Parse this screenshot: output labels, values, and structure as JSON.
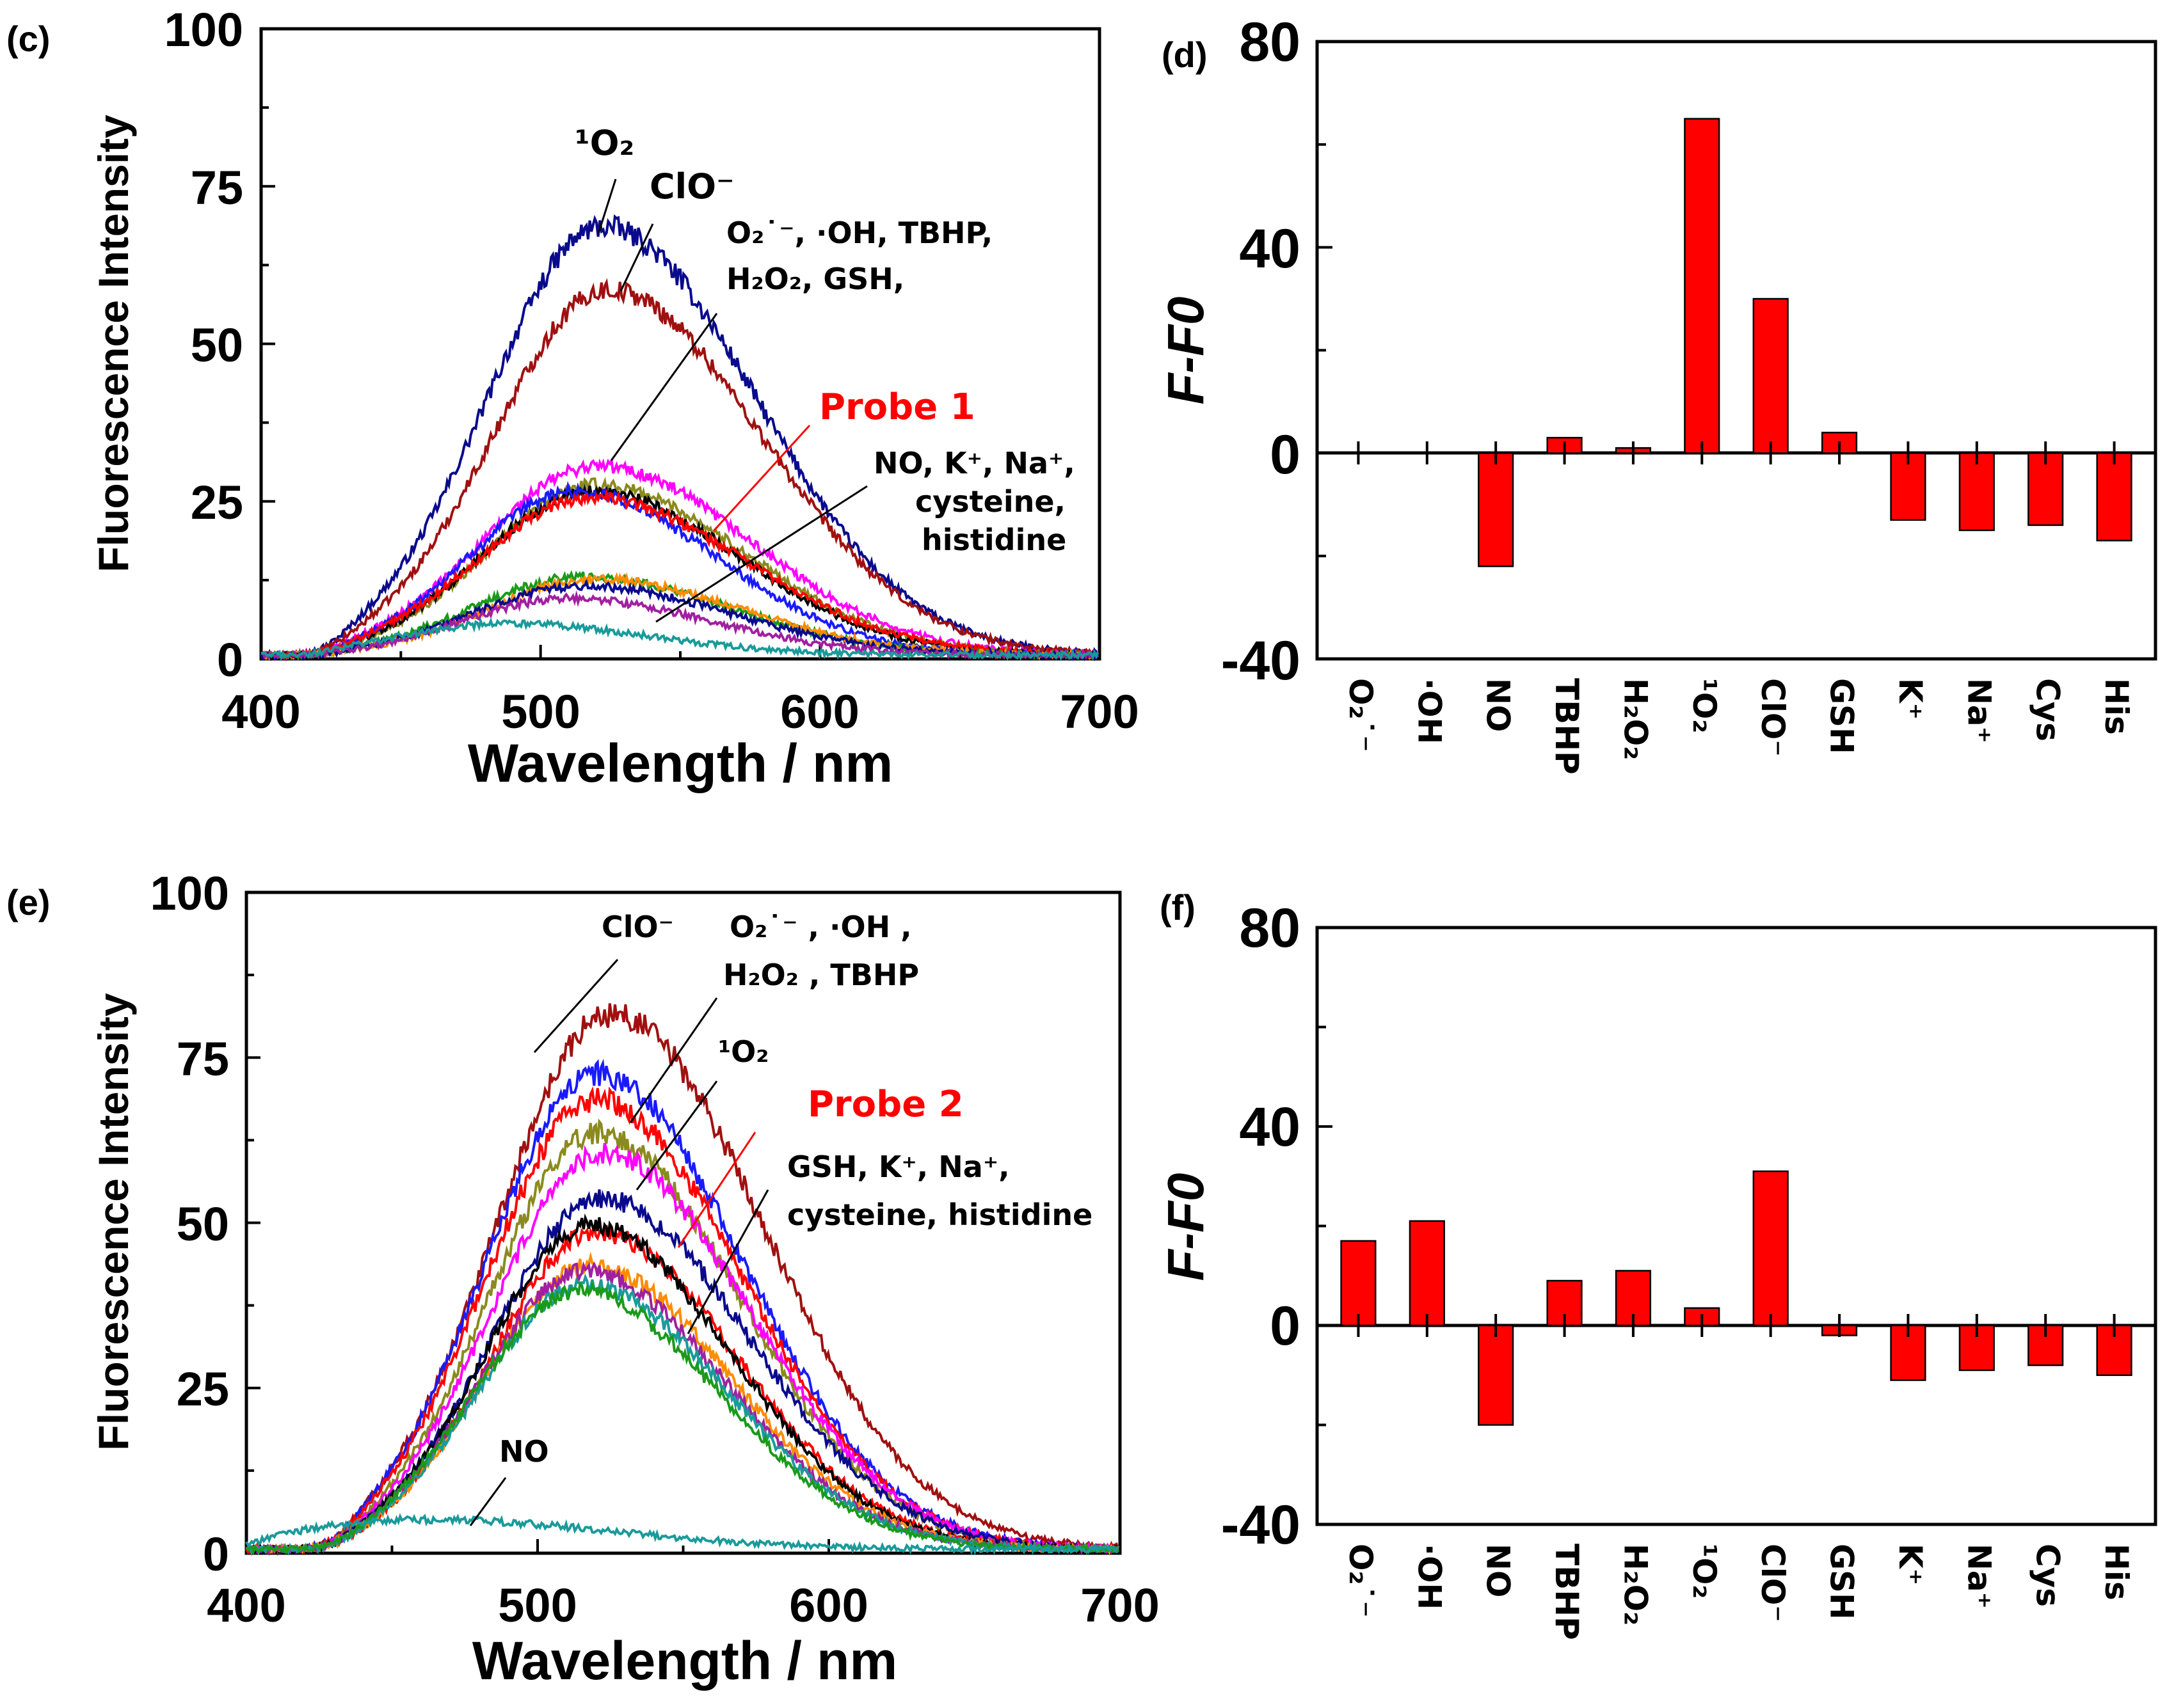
{
  "panels": {
    "c": {
      "label": "(c)",
      "type": "line",
      "xlabel": "Wavelength / nm",
      "ylabel": "Fluorescence Intensity",
      "xlim": [
        400,
        700
      ],
      "ylim": [
        0,
        100
      ],
      "xticks": [
        "400",
        "500",
        "600",
        "700"
      ],
      "yticks": [
        "0",
        "25",
        "50",
        "75",
        "100"
      ],
      "annotations": {
        "o2": "¹O₂",
        "clo": "ClO⁻",
        "grp1a": "O₂˙⁻, ·OH, TBHP,",
        "grp1b": "H₂O₂, GSH,",
        "probe": "Probe 1",
        "grp2a": "NO, K⁺, Na⁺,",
        "grp2b": "cysteine,",
        "grp2c": "histidine"
      }
    },
    "e": {
      "label": "(e)",
      "type": "line",
      "xlabel": "Wavelength / nm",
      "ylabel": "Fluorescence Intensity",
      "xlim": [
        400,
        700
      ],
      "ylim": [
        0,
        100
      ],
      "xticks": [
        "400",
        "500",
        "600",
        "700"
      ],
      "yticks": [
        "0",
        "25",
        "50",
        "75",
        "100"
      ],
      "annotations": {
        "clo": "ClO⁻",
        "grp1a": "O₂˙⁻ , ·OH ,",
        "grp1b": "H₂O₂ , TBHP",
        "o2": "¹O₂",
        "probe": "Probe 2",
        "grp2a": "GSH, K⁺, Na⁺,",
        "grp2b": "cysteine, histidine",
        "no": "NO"
      }
    },
    "d": {
      "label": "(d)",
      "ylabel": "F-F0",
      "yticks": [
        "-40",
        "0",
        "40",
        "80"
      ],
      "categories": [
        "O₂˙⁻",
        "·OH",
        "NO",
        "TBHP",
        "H₂O₂",
        "¹O₂",
        "ClO⁻",
        "GSH",
        "K⁺",
        "Na⁺",
        "Cys",
        "His"
      ]
    },
    "f": {
      "label": "(f)",
      "ylabel": "F-F0",
      "yticks": [
        "-40",
        "0",
        "40",
        "80"
      ],
      "categories": [
        "O₂˙⁻",
        "·OH",
        "NO",
        "TBHP",
        "H₂O₂",
        "¹O₂",
        "ClO⁻",
        "GSH",
        "K⁺",
        "Na⁺",
        "Cys",
        "His"
      ]
    }
  },
  "colors": {
    "bar": "#ff0000",
    "probe_label": "#ff0000",
    "navy": "#0a0a8c",
    "darkred": "#a01010",
    "magenta": "#ff00ff",
    "olive": "#8a8a1e",
    "black": "#000000",
    "blue": "#1a1aff",
    "red": "#ff0000",
    "green": "#1a9a1a",
    "orange": "#ff8c00",
    "purple": "#a020a0",
    "teal": "#1a9a9a"
  },
  "chart_data": [
    {
      "panel": "c",
      "type": "line",
      "title": "",
      "xlabel": "Wavelength / nm",
      "ylabel": "Fluorescence Intensity",
      "xlim": [
        400,
        700
      ],
      "ylim": [
        0,
        100
      ],
      "series": [
        {
          "name": "¹O₂",
          "color": "#0a0a8c",
          "peak": 68,
          "center": 522,
          "width": 52,
          "onset": 425
        },
        {
          "name": "ClO⁻",
          "color": "#a01010",
          "peak": 58,
          "center": 524,
          "width": 52,
          "onset": 425
        },
        {
          "name": "TBHP",
          "color": "#ff00ff",
          "peak": 30,
          "center": 520,
          "width": 52,
          "onset": 425
        },
        {
          "name": "·OH",
          "color": "#8a8a1e",
          "peak": 27,
          "center": 520,
          "width": 50,
          "onset": 425
        },
        {
          "name": "O₂˙⁻",
          "color": "#000000",
          "peak": 26,
          "center": 518,
          "width": 50,
          "onset": 425
        },
        {
          "name": "H₂O₂",
          "color": "#1a1aff",
          "peak": 26,
          "center": 512,
          "width": 48,
          "onset": 425
        },
        {
          "name": "Probe 1",
          "color": "#ff0000",
          "peak": 25,
          "center": 518,
          "width": 52,
          "onset": 425
        },
        {
          "name": "K⁺",
          "color": "#1a9a1a",
          "peak": 12.5,
          "center": 515,
          "width": 50,
          "onset": 425
        },
        {
          "name": "Na⁺",
          "color": "#ff8c00",
          "peak": 12,
          "center": 520,
          "width": 50,
          "onset": 425
        },
        {
          "name": "cysteine",
          "color": "#0a0a8c",
          "peak": 11,
          "center": 515,
          "width": 50,
          "onset": 425
        },
        {
          "name": "histidine",
          "color": "#a020a0",
          "peak": 9,
          "center": 510,
          "width": 48,
          "onset": 425
        },
        {
          "name": "NO",
          "color": "#1a9a9a",
          "peak": 5,
          "center": 488,
          "width": 48,
          "onset": 422
        }
      ]
    },
    {
      "panel": "d",
      "type": "bar",
      "ylabel": "F-F0",
      "ylim": [
        -40,
        80
      ],
      "categories": [
        "O₂˙⁻",
        "·OH",
        "NO",
        "TBHP",
        "H₂O₂",
        "¹O₂",
        "ClO⁻",
        "GSH",
        "K⁺",
        "Na⁺",
        "Cys",
        "His"
      ],
      "values": [
        0,
        0,
        -22,
        3,
        1,
        65,
        30,
        4,
        -13,
        -15,
        -14,
        -17
      ]
    },
    {
      "panel": "e",
      "type": "line",
      "title": "",
      "xlabel": "Wavelength / nm",
      "ylabel": "Fluorescence Intensity",
      "xlim": [
        400,
        700
      ],
      "ylim": [
        0,
        100
      ],
      "series": [
        {
          "name": "ClO⁻",
          "color": "#a01010",
          "peak": 81,
          "center": 525,
          "width": 50,
          "onset": 432
        },
        {
          "name": "·OH",
          "color": "#1a1aff",
          "peak": 72,
          "center": 520,
          "width": 48,
          "onset": 432
        },
        {
          "name": "O₂˙⁻",
          "color": "#ff0000",
          "peak": 68,
          "center": 520,
          "width": 48,
          "onset": 432
        },
        {
          "name": "H₂O₂",
          "color": "#8a8a1e",
          "peak": 63,
          "center": 520,
          "width": 47,
          "onset": 432
        },
        {
          "name": "TBHP",
          "color": "#ff00ff",
          "peak": 60,
          "center": 522,
          "width": 48,
          "onset": 432
        },
        {
          "name": "¹O₂",
          "color": "#0a0a8c",
          "peak": 53,
          "center": 522,
          "width": 48,
          "onset": 432
        },
        {
          "name": "Probe 2",
          "color": "#ff0000",
          "peak": 48,
          "center": 520,
          "width": 46,
          "onset": 432
        },
        {
          "name": "GSH",
          "color": "#000000",
          "peak": 49,
          "center": 518,
          "width": 46,
          "onset": 432
        },
        {
          "name": "K⁺",
          "color": "#ff8c00",
          "peak": 43,
          "center": 518,
          "width": 46,
          "onset": 432
        },
        {
          "name": "Na⁺",
          "color": "#a020a0",
          "peak": 42,
          "center": 516,
          "width": 46,
          "onset": 432
        },
        {
          "name": "cysteine",
          "color": "#1a9a9a",
          "peak": 40,
          "center": 516,
          "width": 46,
          "onset": 432
        },
        {
          "name": "histidine",
          "color": "#1a9a1a",
          "peak": 39,
          "center": 514,
          "width": 46,
          "onset": 432
        },
        {
          "name": "NO",
          "color": "#1a9a9a",
          "peak": 4.5,
          "center": 462,
          "width": 60,
          "onset": 402
        }
      ]
    },
    {
      "panel": "f",
      "type": "bar",
      "ylabel": "F-F0",
      "ylim": [
        -40,
        80
      ],
      "categories": [
        "O₂˙⁻",
        "·OH",
        "NO",
        "TBHP",
        "H₂O₂",
        "¹O₂",
        "ClO⁻",
        "GSH",
        "K⁺",
        "Na⁺",
        "Cys",
        "His"
      ],
      "values": [
        17,
        21,
        -20,
        9,
        11,
        3.5,
        31,
        -2,
        -11,
        -9,
        -8,
        -10
      ]
    }
  ]
}
